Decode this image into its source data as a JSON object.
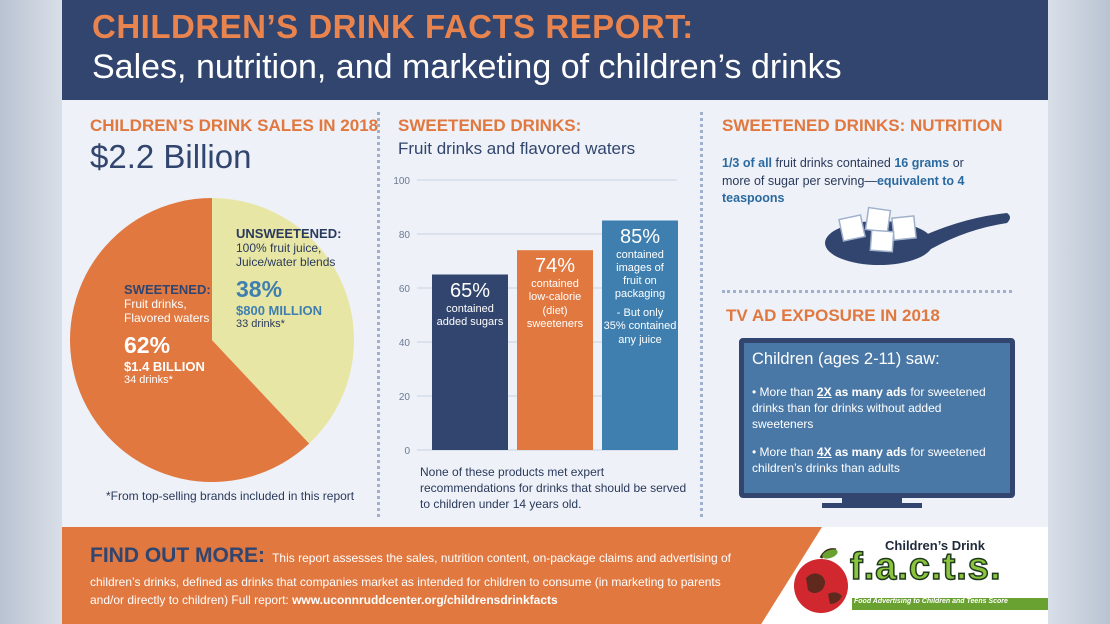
{
  "header": {
    "title": "CHILDREN’S DRINK FACTS REPORT:",
    "subtitle": "Sales, nutrition, and marketing of children’s drinks"
  },
  "sales": {
    "title": "CHILDREN’S DRINK SALES IN 2018",
    "total": "$2.2 Billion",
    "sweetened": {
      "heading": "SWEETENED:",
      "line1": "Fruit drinks,",
      "line2": "Flavored waters",
      "percent": "62%",
      "amount": "$1.4 BILLION",
      "count": "34 drinks*"
    },
    "unsweetened": {
      "heading": "UNSWEETENED:",
      "line1": "100% fruit juice,",
      "line2": "Juice/water blends",
      "percent": "38%",
      "amount": "$800 MILLION",
      "count": "33 drinks*"
    },
    "footnote": "*From top-selling brands included in this report"
  },
  "sweetened_drinks": {
    "title": "SWEETENED DRINKS:",
    "subtitle": "Fruit drinks and flavored waters",
    "note": "None of these products met expert recommendations for drinks that should be served to children under 14 years old."
  },
  "chart_data": [
    {
      "type": "pie",
      "categories": [
        "SWEETENED: Fruit drinks, Flavored waters",
        "UNSWEETENED: 100% fruit juice, Juice/water blends"
      ],
      "values": [
        62,
        38
      ],
      "colors": [
        "#e07840",
        "#e8e6a4"
      ],
      "title": "CHILDREN’S DRINK SALES IN 2018"
    },
    {
      "type": "bar",
      "title": "SWEETENED DRINKS:",
      "categories": [
        "contained added sugars",
        "contained low-calorie (diet) sweeteners",
        "contained images of fruit on packaging"
      ],
      "values": [
        65,
        74,
        85
      ],
      "ylim": [
        0,
        100
      ],
      "yticks": [
        "0",
        "20",
        "40",
        "60",
        "80",
        "100"
      ],
      "grid": true,
      "colors": [
        "#31456e",
        "#e07840",
        "#3e7fb0"
      ],
      "bars": [
        {
          "pct": "65%",
          "lines": [
            "contained",
            "added sugars"
          ]
        },
        {
          "pct": "74%",
          "lines": [
            "contained",
            "low-calorie",
            "(diet)",
            "sweeteners"
          ]
        },
        {
          "pct": "85%",
          "lines": [
            "contained",
            "images of",
            "fruit on",
            "packaging"
          ],
          "extra": [
            "- But only",
            "35% contained",
            "any juice"
          ]
        }
      ]
    }
  ],
  "nutrition": {
    "title": "SWEETENED DRINKS: NUTRITION",
    "fact": {
      "a": "1/3 of all",
      "b": " fruit drinks contained ",
      "c": "16 grams",
      "d": " or more of sugar per serving—",
      "e": "equivalent to 4 teaspoons"
    }
  },
  "tv": {
    "title": "TV AD EXPOSURE IN 2018",
    "heading": "Children (ages 2-11) saw:",
    "bullet1": {
      "a": "More than ",
      "b": "2X",
      "c": " as many ads",
      "d": " for sweetened drinks than for drinks without added sweeteners"
    },
    "bullet2": {
      "a": "More than ",
      "b": "4X",
      "c": " as many ads",
      "d": " for sweetened children’s drinks than adults"
    }
  },
  "footer": {
    "heading": "FIND OUT MORE:",
    "body": " This report assesses the sales, nutrition content, on-package claims and advertising of children’s drinks, defined as drinks that companies market as intended for children to consume (in marketing to parents and/or directly to children) Full report: ",
    "url": "www.uconnruddcenter.org/childrensdrinkfacts"
  },
  "logo": {
    "top": "Children’s Drink",
    "word": "f.a.c.t.s.",
    "tagline": "Food Advertising to Children and Teens Score"
  }
}
